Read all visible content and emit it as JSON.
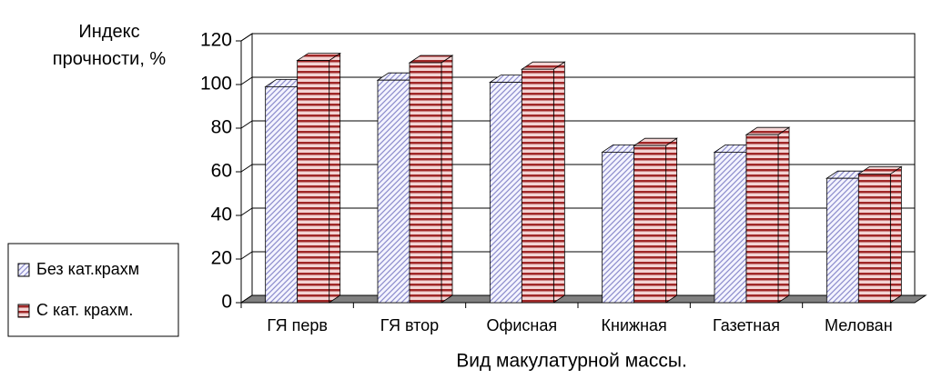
{
  "chart_data": {
    "type": "bar3d",
    "y_axis_title": "Индекс прочности, %",
    "x_axis_title": "Вид макулатурной массы.",
    "categories": [
      "ГЯ перв",
      "ГЯ втор",
      "Офисная",
      "Книжная",
      "Газетная",
      "Мелован"
    ],
    "series": [
      {
        "name": "Без кат.крахм",
        "color": "#8c8ccc",
        "pattern": "diagonal",
        "values": [
          99,
          102,
          101,
          69,
          69,
          57
        ]
      },
      {
        "name": "С кат. крахм.",
        "color": "#a02828",
        "pattern": "horizontal",
        "values": [
          111,
          110,
          107,
          72,
          77,
          59
        ]
      }
    ],
    "ylim": [
      0,
      120
    ],
    "yticks": [
      0,
      20,
      40,
      60,
      80,
      100,
      120
    ],
    "grid": true
  }
}
